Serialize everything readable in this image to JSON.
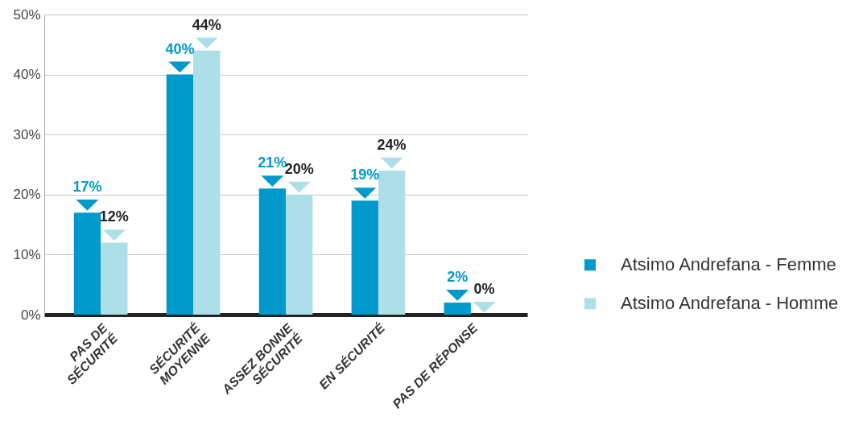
{
  "chart_data": {
    "type": "bar",
    "categories": [
      "PAS DE SÉCURITÉ",
      "SÉCURITÉ MOYENNE",
      "ASSEZ BONNE SÉCURITÉ",
      "EN SÉCURITÉ",
      "PAS DE RÉPONSE"
    ],
    "series": [
      {
        "name": "Atsimo Andrefana - Femme",
        "color": "#0099cc",
        "values": [
          17,
          40,
          21,
          19,
          2
        ],
        "value_labels": [
          "17%",
          "40%",
          "21%",
          "19%",
          "2%"
        ]
      },
      {
        "name": "Atsimo Andrefana - Homme",
        "color": "#addfe8",
        "values": [
          12,
          44,
          20,
          24,
          0
        ],
        "value_labels": [
          "12%",
          "44%",
          "20%",
          "24%",
          "0%"
        ]
      }
    ],
    "ylim": [
      0,
      50
    ],
    "yticks": [
      {
        "value": 0,
        "label": "0%"
      },
      {
        "value": 10,
        "label": "10%"
      },
      {
        "value": 20,
        "label": "20%"
      },
      {
        "value": 30,
        "label": "30%"
      },
      {
        "value": 40,
        "label": "40%"
      },
      {
        "value": 50,
        "label": "50%"
      }
    ],
    "grid": "y",
    "legend": "right"
  }
}
